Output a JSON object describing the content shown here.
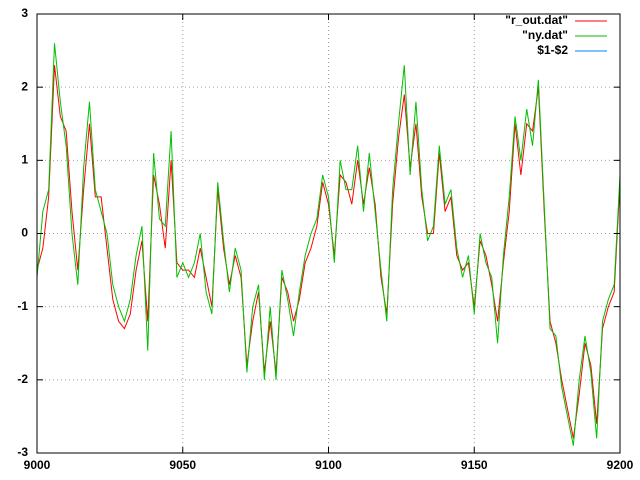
{
  "chart_data": {
    "type": "line",
    "x": [
      9000,
      9002,
      9004,
      9006,
      9008,
      9010,
      9012,
      9014,
      9016,
      9018,
      9020,
      9022,
      9024,
      9026,
      9028,
      9030,
      9032,
      9034,
      9036,
      9038,
      9040,
      9042,
      9044,
      9046,
      9048,
      9050,
      9052,
      9054,
      9056,
      9058,
      9060,
      9062,
      9064,
      9066,
      9068,
      9070,
      9072,
      9074,
      9076,
      9078,
      9080,
      9082,
      9084,
      9086,
      9088,
      9090,
      9092,
      9094,
      9096,
      9098,
      9100,
      9102,
      9104,
      9106,
      9108,
      9110,
      9112,
      9114,
      9116,
      9118,
      9120,
      9122,
      9124,
      9126,
      9128,
      9130,
      9132,
      9134,
      9136,
      9138,
      9140,
      9142,
      9144,
      9146,
      9148,
      9150,
      9152,
      9154,
      9156,
      9158,
      9160,
      9162,
      9164,
      9166,
      9168,
      9170,
      9172,
      9174,
      9176,
      9178,
      9180,
      9182,
      9184,
      9186,
      9188,
      9190,
      9192,
      9194,
      9196,
      9198,
      9200
    ],
    "series": [
      {
        "name": "\"r_out.dat\"",
        "color": "#ff0000",
        "values": [
          -0.5,
          -0.2,
          0.5,
          2.3,
          1.6,
          1.4,
          0.3,
          -0.5,
          0.6,
          1.5,
          0.5,
          0.5,
          -0.2,
          -0.9,
          -1.2,
          -1.3,
          -1.1,
          -0.5,
          -0.1,
          -1.2,
          0.8,
          0.4,
          -0.2,
          1.0,
          -0.4,
          -0.5,
          -0.5,
          -0.6,
          -0.2,
          -0.6,
          -1.0,
          0.6,
          -0.2,
          -0.7,
          -0.3,
          -0.6,
          -1.8,
          -1.2,
          -0.8,
          -1.9,
          -1.2,
          -1.9,
          -0.6,
          -0.8,
          -1.2,
          -0.9,
          -0.4,
          -0.2,
          0.1,
          0.7,
          0.4,
          -0.3,
          0.8,
          0.7,
          0.4,
          1.0,
          0.4,
          0.9,
          0.4,
          -0.6,
          -1.1,
          0.4,
          1.3,
          1.9,
          0.9,
          1.5,
          0.5,
          0.0,
          0.0,
          1.1,
          0.3,
          0.5,
          -0.3,
          -0.5,
          -0.4,
          -1.0,
          -0.1,
          -0.3,
          -0.7,
          -1.2,
          -0.4,
          0.3,
          1.5,
          0.8,
          1.5,
          1.4,
          2.0,
          0.3,
          -1.2,
          -1.5,
          -2.0,
          -2.4,
          -2.8,
          -2.2,
          -1.5,
          -1.8,
          -2.6,
          -1.3,
          -1.0,
          -0.8,
          0.7
        ]
      },
      {
        "name": "\"ny.dat\"",
        "color": "#00c000",
        "values": [
          -0.6,
          0.3,
          0.6,
          2.6,
          1.8,
          1.2,
          0.0,
          -0.7,
          0.9,
          1.8,
          0.6,
          0.3,
          0.0,
          -0.7,
          -1.0,
          -1.2,
          -0.9,
          -0.3,
          0.1,
          -1.6,
          1.1,
          0.2,
          0.1,
          1.4,
          -0.6,
          -0.4,
          -0.6,
          -0.4,
          0.0,
          -0.8,
          -1.1,
          0.7,
          -0.1,
          -0.8,
          -0.2,
          -0.5,
          -1.9,
          -1.0,
          -0.7,
          -2.0,
          -1.0,
          -2.0,
          -0.5,
          -0.9,
          -1.4,
          -0.8,
          -0.3,
          0.0,
          0.2,
          0.8,
          0.5,
          -0.4,
          1.0,
          0.6,
          0.6,
          1.2,
          0.3,
          1.1,
          0.3,
          -0.5,
          -1.2,
          0.6,
          1.5,
          2.3,
          0.8,
          1.8,
          0.6,
          -0.1,
          0.1,
          1.2,
          0.4,
          0.6,
          -0.2,
          -0.6,
          -0.3,
          -1.1,
          0.0,
          -0.4,
          -0.6,
          -1.5,
          -0.3,
          0.5,
          1.6,
          1.0,
          1.7,
          1.2,
          2.1,
          0.4,
          -1.3,
          -1.4,
          -2.1,
          -2.5,
          -2.9,
          -2.0,
          -1.4,
          -1.9,
          -2.8,
          -1.2,
          -0.9,
          -0.7,
          0.8
        ]
      },
      {
        "name": "$1-$2",
        "color": "#0080ff",
        "values": [
          null,
          null,
          null,
          null,
          null,
          null,
          null,
          null,
          null,
          null,
          null,
          null,
          null,
          null,
          null,
          null,
          null,
          null,
          null,
          null,
          null,
          null,
          null,
          null,
          null,
          null,
          null,
          null,
          null,
          null,
          null,
          null,
          null,
          null,
          null,
          null,
          null,
          null,
          null,
          null,
          null,
          null,
          null,
          null,
          null,
          null,
          null,
          null,
          null,
          null,
          null,
          null,
          null,
          null,
          null,
          null,
          null,
          null,
          null,
          null,
          null,
          null,
          null,
          null,
          null,
          null,
          null,
          null,
          null,
          null,
          null,
          null,
          null,
          null,
          null,
          null,
          null,
          null,
          null,
          null,
          null,
          null,
          null,
          null,
          null,
          null,
          null,
          null,
          null,
          null,
          null,
          null,
          null,
          null,
          null,
          null,
          null,
          null,
          null,
          null,
          null
        ]
      }
    ],
    "xlim": [
      9000,
      9200
    ],
    "xticks": [
      9000,
      9050,
      9100,
      9150,
      9200
    ],
    "ylim": [
      -3,
      3
    ],
    "yticks": [
      -3,
      -2,
      -1,
      0,
      1,
      2,
      3
    ],
    "grid": true,
    "legend": "top-right"
  }
}
